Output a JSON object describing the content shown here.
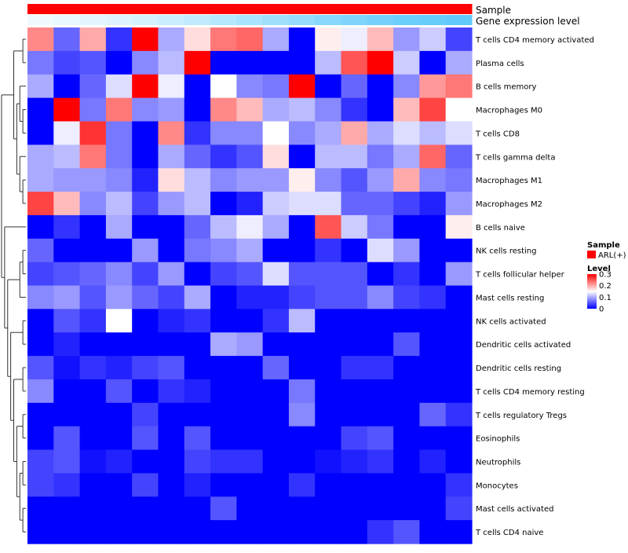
{
  "chart_data": {
    "type": "heatmap",
    "annotation_tracks": [
      {
        "name": "Sample",
        "label": "Sample",
        "color": "#ff0000"
      },
      {
        "name": "Gene expression level",
        "label": "Gene expression level",
        "values": [
          0.02,
          0.06,
          0.1,
          0.14,
          0.2,
          0.26,
          0.32,
          0.4,
          0.48,
          0.55,
          0.62,
          0.7,
          0.76,
          0.82,
          0.88,
          0.92,
          0.96
        ]
      }
    ],
    "rows": [
      "T cells CD4 memory activated",
      "Plasma cells",
      "B cells memory",
      "Macrophages M0",
      "T cells CD8",
      "T cells gamma delta",
      "Macrophages M1",
      "Macrophages M2",
      "B cells naive",
      "NK cells resting",
      "T cells follicular helper",
      "Mast cells resting",
      "NK cells activated",
      "Dendritic cells activated",
      "Dendritic cells resting",
      "T cells CD4 memory resting",
      "T cells regulatory  Tregs",
      "Eosinophils",
      "Neutrophils",
      "Monocytes",
      "Mast cells activated",
      "T cells CD4 naive"
    ],
    "n_columns": 17,
    "values": [
      [
        0.22,
        0.06,
        0.2,
        0.03,
        0.3,
        0.1,
        0.17,
        0.23,
        0.24,
        0.1,
        0.0,
        0.16,
        0.14,
        0.19,
        0.09,
        0.12,
        0.04
      ],
      [
        0.07,
        0.04,
        0.05,
        0.0,
        0.08,
        0.11,
        0.3,
        0.0,
        0.0,
        0.0,
        0.0,
        0.11,
        0.25,
        0.3,
        0.12,
        0.0,
        0.1
      ],
      [
        0.1,
        0.0,
        0.06,
        0.13,
        0.3,
        0.14,
        0.0,
        0.15,
        0.08,
        0.07,
        0.3,
        0.0,
        0.06,
        0.0,
        0.08,
        0.21,
        0.23
      ],
      [
        0.0,
        0.3,
        0.07,
        0.23,
        0.08,
        0.09,
        0.0,
        0.22,
        0.19,
        0.1,
        0.11,
        0.08,
        0.03,
        0.0,
        0.19,
        0.26,
        0.15
      ],
      [
        0.0,
        0.14,
        0.27,
        0.07,
        0.0,
        0.22,
        0.03,
        0.08,
        0.08,
        0.15,
        0.08,
        0.1,
        0.2,
        0.1,
        0.13,
        0.11,
        0.13
      ],
      [
        0.1,
        0.11,
        0.23,
        0.07,
        0.0,
        0.1,
        0.06,
        0.03,
        0.05,
        0.17,
        0.0,
        0.11,
        0.11,
        0.07,
        0.1,
        0.24,
        0.06
      ],
      [
        0.1,
        0.09,
        0.09,
        0.08,
        0.02,
        0.17,
        0.11,
        0.08,
        0.09,
        0.09,
        0.16,
        0.08,
        0.05,
        0.09,
        0.2,
        0.08,
        0.07
      ],
      [
        0.26,
        0.19,
        0.08,
        0.11,
        0.04,
        0.09,
        0.11,
        0.0,
        0.02,
        0.12,
        0.13,
        0.13,
        0.06,
        0.06,
        0.04,
        0.02,
        0.09
      ],
      [
        0.0,
        0.03,
        0.0,
        0.1,
        0.0,
        0.0,
        0.06,
        0.11,
        0.14,
        0.1,
        0.0,
        0.25,
        0.12,
        0.07,
        0.0,
        0.0,
        0.16
      ],
      [
        0.06,
        0.0,
        0.0,
        0.0,
        0.09,
        0.0,
        0.07,
        0.08,
        0.1,
        0.0,
        0.0,
        0.03,
        0.0,
        0.13,
        0.09,
        0.0,
        0.0
      ],
      [
        0.04,
        0.05,
        0.06,
        0.08,
        0.04,
        0.09,
        0.0,
        0.04,
        0.05,
        0.13,
        0.05,
        0.05,
        0.05,
        0.0,
        0.03,
        0.0,
        0.09
      ],
      [
        0.08,
        0.09,
        0.05,
        0.09,
        0.06,
        0.04,
        0.1,
        0.0,
        0.02,
        0.02,
        0.04,
        0.05,
        0.05,
        0.08,
        0.04,
        0.03,
        0.0
      ],
      [
        0.0,
        0.05,
        0.03,
        0.15,
        0.0,
        0.02,
        0.03,
        0.0,
        0.0,
        0.03,
        0.11,
        0.0,
        0.0,
        0.0,
        0.0,
        0.0,
        0.0
      ],
      [
        0.0,
        0.02,
        0.0,
        0.0,
        0.0,
        0.0,
        0.0,
        0.1,
        0.09,
        0.0,
        0.0,
        0.0,
        0.0,
        0.0,
        0.05,
        0.0,
        0.0
      ],
      [
        0.05,
        0.01,
        0.03,
        0.02,
        0.04,
        0.05,
        0.0,
        0.0,
        0.0,
        0.06,
        0.0,
        0.0,
        0.03,
        0.03,
        0.0,
        0.0,
        0.0
      ],
      [
        0.08,
        0.0,
        0.0,
        0.05,
        0.0,
        0.03,
        0.02,
        0.0,
        0.0,
        0.0,
        0.07,
        0.0,
        0.0,
        0.0,
        0.0,
        0.0,
        0.0
      ],
      [
        0.0,
        0.0,
        0.0,
        0.0,
        0.04,
        0.0,
        0.0,
        0.0,
        0.0,
        0.0,
        0.08,
        0.0,
        0.0,
        0.0,
        0.0,
        0.06,
        0.03
      ],
      [
        0.0,
        0.05,
        0.0,
        0.0,
        0.05,
        0.0,
        0.05,
        0.0,
        0.0,
        0.0,
        0.0,
        0.0,
        0.04,
        0.05,
        0.0,
        0.0,
        0.0
      ],
      [
        0.04,
        0.05,
        0.01,
        0.02,
        0.0,
        0.0,
        0.04,
        0.03,
        0.03,
        0.0,
        0.0,
        0.01,
        0.02,
        0.03,
        0.0,
        0.02,
        0.0
      ],
      [
        0.04,
        0.03,
        0.0,
        0.0,
        0.04,
        0.0,
        0.02,
        0.0,
        0.0,
        0.0,
        0.03,
        0.0,
        0.0,
        0.0,
        0.0,
        0.0,
        0.03
      ],
      [
        0.0,
        0.0,
        0.0,
        0.0,
        0.0,
        0.0,
        0.0,
        0.05,
        0.0,
        0.0,
        0.0,
        0.0,
        0.0,
        0.0,
        0.0,
        0.0,
        0.04
      ],
      [
        0.0,
        0.0,
        0.0,
        0.0,
        0.0,
        0.0,
        0.0,
        0.0,
        0.0,
        0.0,
        0.0,
        0.0,
        0.0,
        0.03,
        0.05,
        0.0,
        0.0
      ]
    ],
    "color_scale": {
      "min": 0,
      "max": 0.3,
      "low": "#0000ff",
      "mid": "#ffffff",
      "high": "#ff0000"
    }
  },
  "legend": {
    "sample_title": "Sample",
    "sample_entry": "ARL(+)",
    "sample_color": "#ff0000",
    "level_title": "Level",
    "level_ticks": [
      "0.3",
      "0.2",
      "0.1",
      "0"
    ],
    "level_tick_values": [
      0.3,
      0.2,
      0.1,
      0
    ]
  },
  "colors": {
    "expr_low": "#f2fbff",
    "expr_high": "#5ac8fa"
  }
}
